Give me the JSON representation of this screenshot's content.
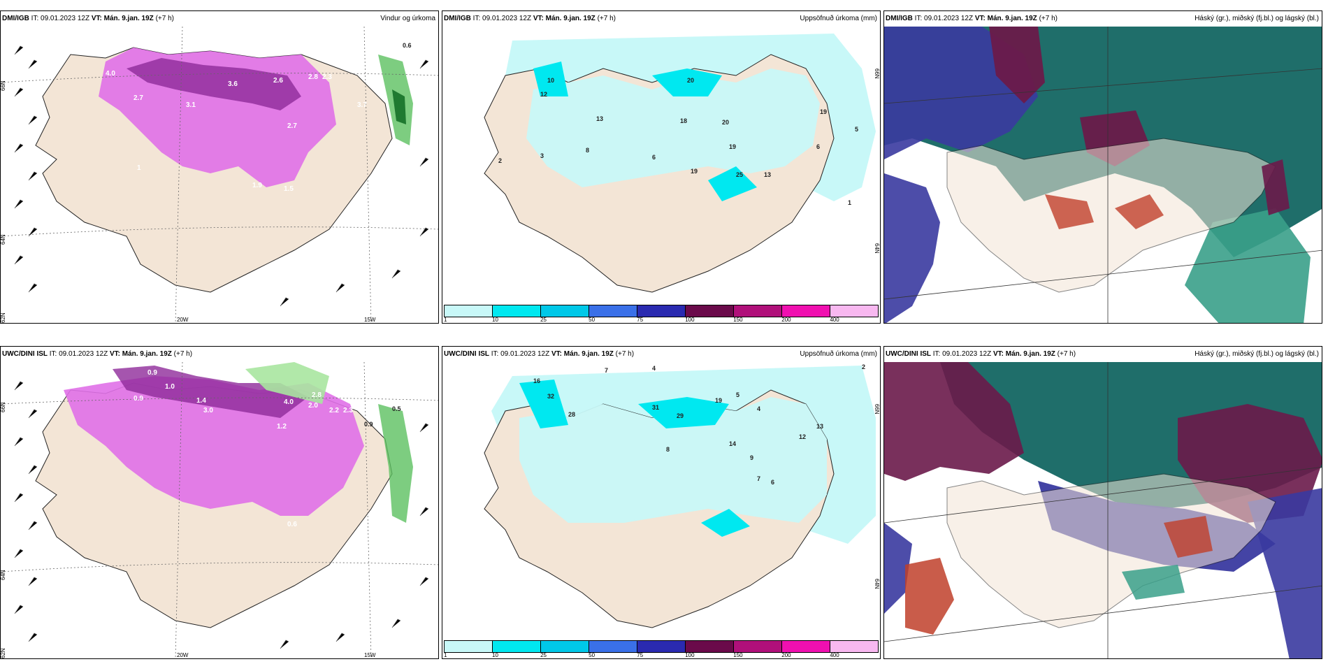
{
  "palette": {
    "land": "#f3e5d6",
    "precip_purple": [
      "#e070e8",
      "#c24ad0",
      "#8e2a9a"
    ],
    "precip_green": [
      "#a8e6a0",
      "#5cc060",
      "#1f7a30"
    ],
    "cloud_high": "#6a1a4a",
    "cloud_mid": "#3a3aa0",
    "cloud_low": "#1f6e6a",
    "cumulative": [
      "#c8f8f8",
      "#00e8f0",
      "#00c8e8",
      "#3a70e8",
      "#2a2ab0",
      "#6a0a4a",
      "#b0107a",
      "#f010b0",
      "#f8b8f0"
    ]
  },
  "panels": [
    {
      "source": "DMI/IGB",
      "it": "IT: 09.01.2023 12Z",
      "vt": "VT: Mán. 9.jan. 19Z",
      "lead": "(+7 h)",
      "product": "Vindur og úrkoma",
      "lat_labels": [
        "66N",
        "64N",
        "62N"
      ],
      "lon_labels": [
        "20W",
        "15W"
      ],
      "values": [
        "4.0",
        "2.7",
        "3.1",
        "3.6",
        "2.6",
        "2.8",
        "2.3",
        "3.7",
        "2.7",
        "1.9",
        "1.5",
        "1",
        "0.6"
      ]
    },
    {
      "source": "DMI/IGB",
      "it": "IT: 09.01.2023 12Z",
      "vt": "VT: Mán. 9.jan. 19Z",
      "lead": "(+7 h)",
      "product": "Uppsöfnuð úrkoma (mm)",
      "lat_labels": [
        "66N",
        "64N"
      ],
      "values": [
        "10",
        "20",
        "12",
        "13",
        "18",
        "20",
        "19",
        "19",
        "8",
        "6",
        "3",
        "2",
        "1",
        "5",
        "6",
        "13",
        "25",
        "19"
      ]
    },
    {
      "source": "DMI/IGB",
      "it": "IT: 09.01.2023 12Z",
      "vt": "VT: Mán. 9.jan. 19Z",
      "lead": "(+7 h)",
      "product": "Háský (gr.), miðský (fj.bl.) og lágský (bl.)"
    },
    {
      "source": "UWC/DINI ISL",
      "it": "IT: 09.01.2023 12Z",
      "vt": "VT: Mán. 9.jan. 19Z",
      "lead": "(+7 h)",
      "product": "",
      "lat_labels": [
        "66N",
        "64N",
        "62N"
      ],
      "lon_labels": [
        "20W",
        "15W"
      ],
      "values": [
        "0.9",
        "1.0",
        "0.6",
        "0.9",
        "4.0",
        "2.8",
        "2.0",
        "2.2",
        "2.3",
        "3.0",
        "1.4",
        "1.2",
        "0.9",
        "0.5",
        "0.6"
      ]
    },
    {
      "source": "UWC/DINI ISL",
      "it": "IT: 09.01.2023 12Z",
      "vt": "VT: Mán. 9.jan. 19Z",
      "lead": "(+7 h)",
      "product": "Uppsöfnuð úrkoma (mm)",
      "lat_labels": [
        "66N",
        "64N"
      ],
      "values": [
        "7",
        "4",
        "16",
        "32",
        "28",
        "31",
        "29",
        "19",
        "5",
        "4",
        "8",
        "12",
        "13",
        "14",
        "9",
        "7",
        "6",
        "2"
      ]
    },
    {
      "source": "UWC/DINI ISL",
      "it": "IT: 09.01.2023 12Z",
      "vt": "VT: Mán. 9.jan. 19Z",
      "lead": "(+7 h)",
      "product": "Háský (gr.), miðský (fj.bl.) og lágský (bl.)"
    }
  ],
  "colorbar": {
    "ticks": [
      "1",
      "10",
      "25",
      "50",
      "75",
      "100",
      "150",
      "200",
      "400"
    ]
  }
}
